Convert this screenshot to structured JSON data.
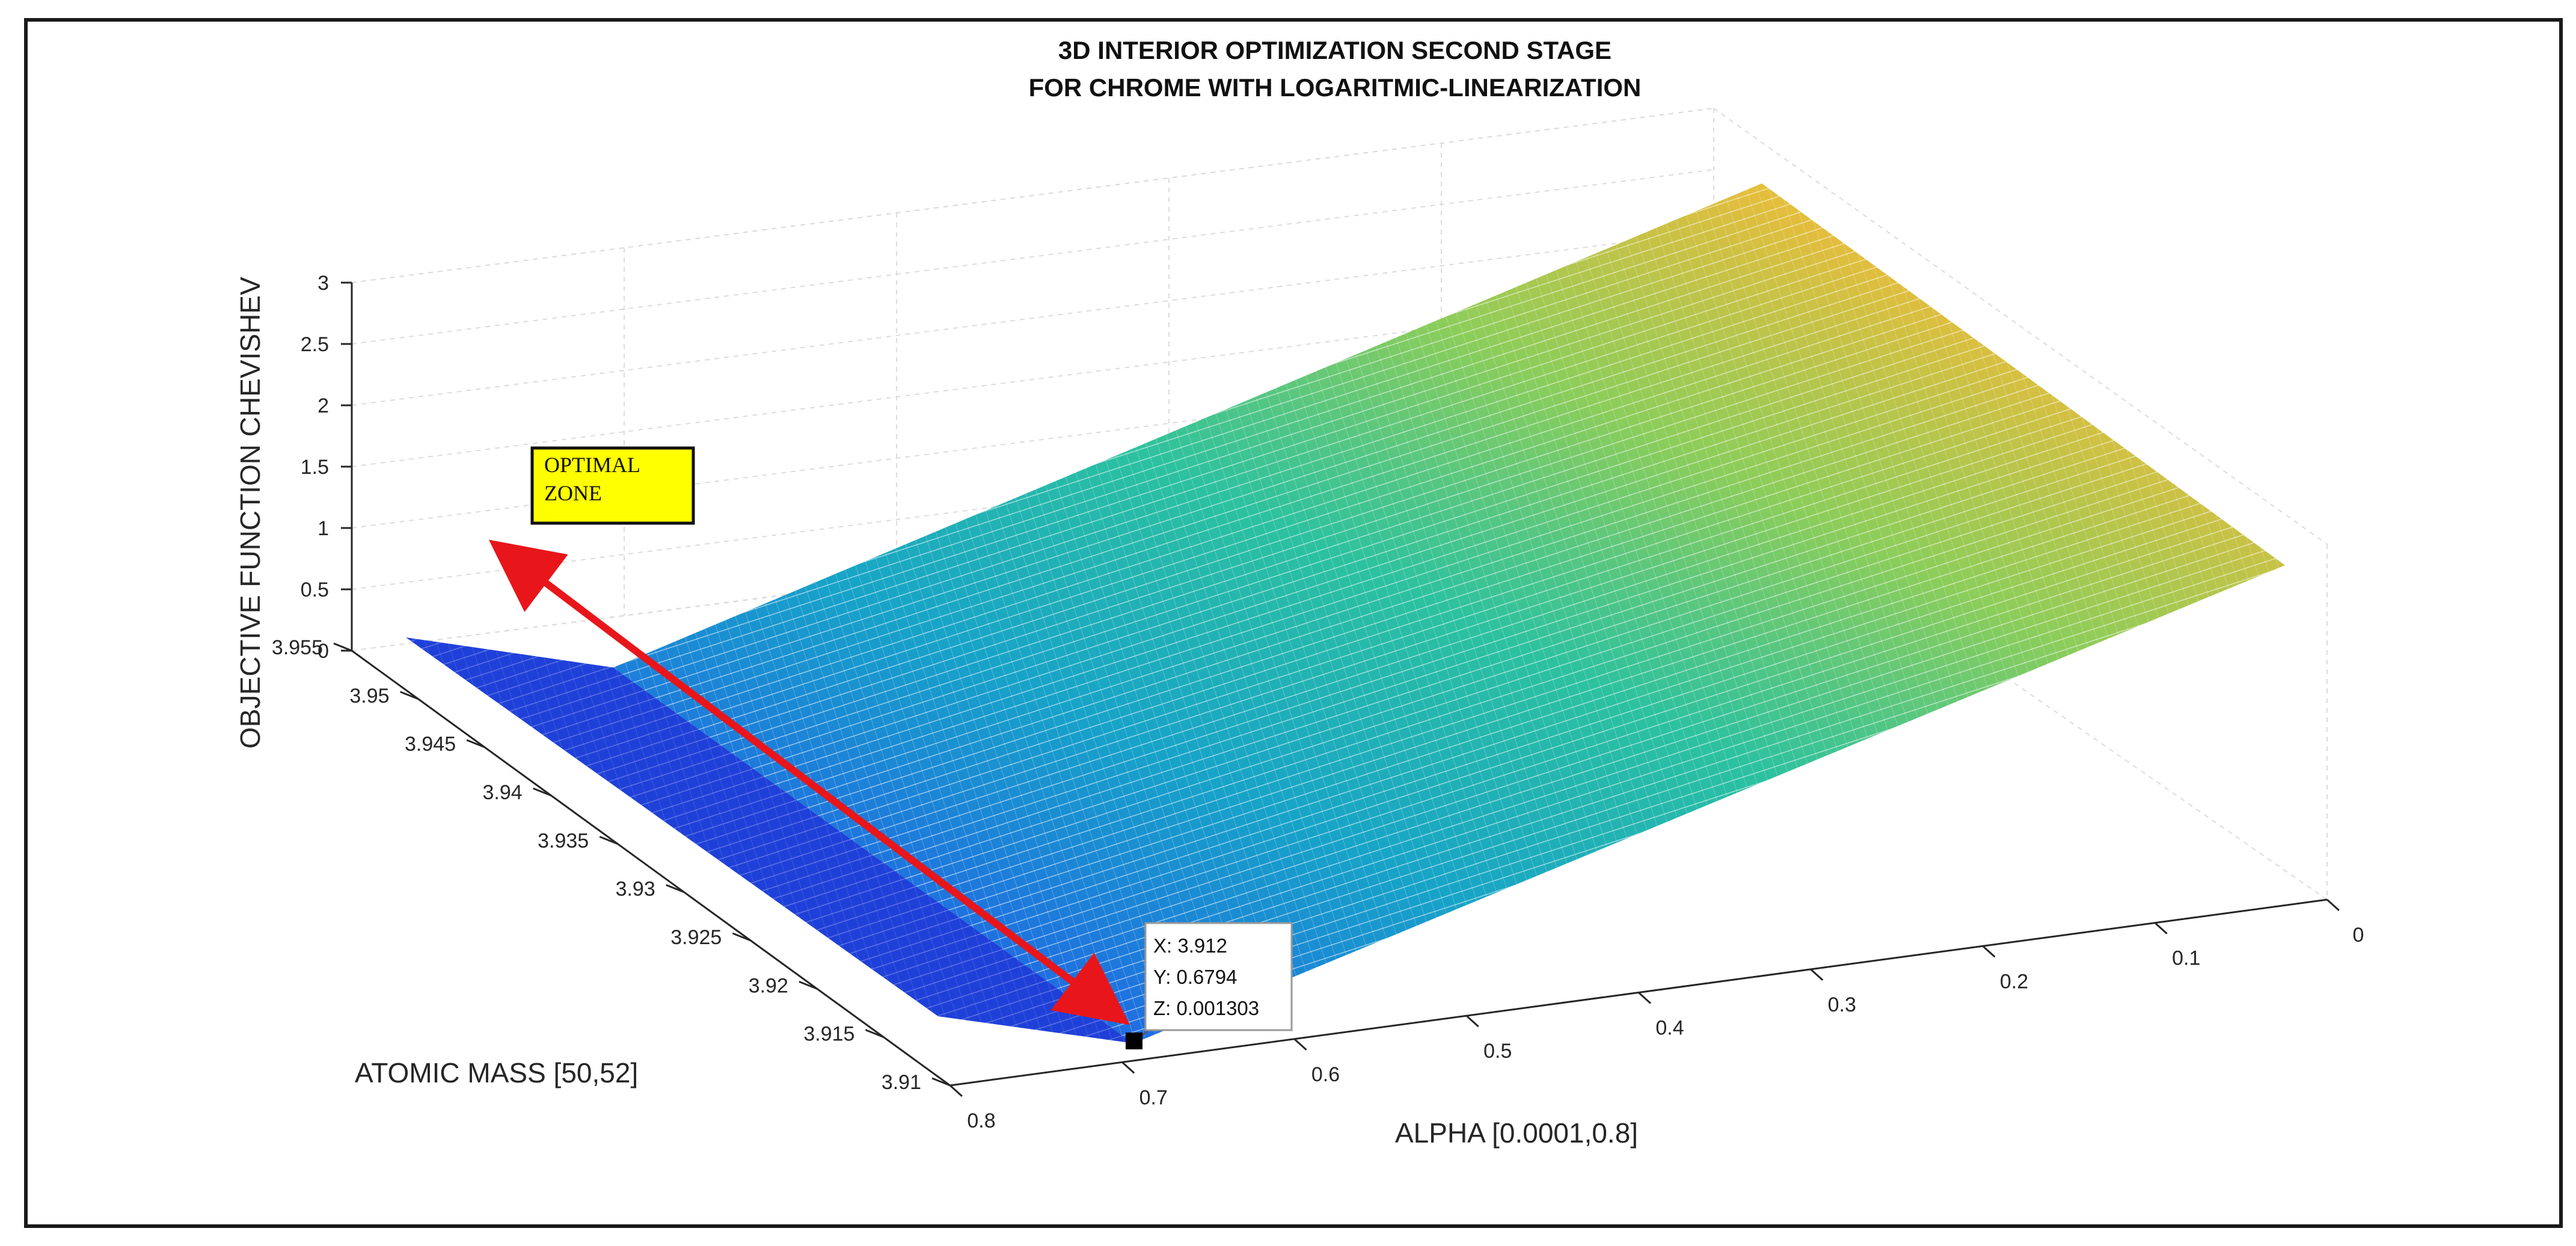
{
  "chart_data": {
    "type": "surface",
    "title": [
      "3D INTERIOR OPTIMIZATION SECOND STAGE",
      "FOR CHROME WITH LOGARITMIC-LINEARIZATION"
    ],
    "xlabel": "ALPHA [0.0001,0.8]",
    "ylabel": "ATOMIC MASS [50,52]",
    "zlabel": "OBJECTIVE FUNCTION CHEVISHEV",
    "x_ticks": [
      "0",
      "0.1",
      "0.2",
      "0.3",
      "0.4",
      "0.5",
      "0.6",
      "0.7",
      "0.8"
    ],
    "y_ticks": [
      "3.91",
      "3.915",
      "3.92",
      "3.925",
      "3.93",
      "3.935",
      "3.94",
      "3.945",
      "3.95",
      "3.955"
    ],
    "z_ticks": [
      "0",
      "0.5",
      "1",
      "1.5",
      "2",
      "2.5",
      "3"
    ],
    "xlim": [
      0,
      0.8
    ],
    "ylim": [
      3.91,
      3.955
    ],
    "zlim": [
      0,
      3
    ],
    "colormap": "parula",
    "grid": true,
    "datatip": {
      "x": "X: 3.912",
      "y": "Y: 0.6794",
      "z": "Z: 0.001303"
    },
    "annotation": {
      "line1": "OPTIMAL",
      "line2": "ZONE"
    }
  },
  "colors": {
    "arrow": "#e8161a",
    "annotation_bg": "#ffff00",
    "colormap_stops": [
      "#1a2fd0",
      "#1f6fe0",
      "#17a3c8",
      "#2cc1a0",
      "#8ccd5a",
      "#e3bd3c",
      "#f5e91e"
    ]
  }
}
